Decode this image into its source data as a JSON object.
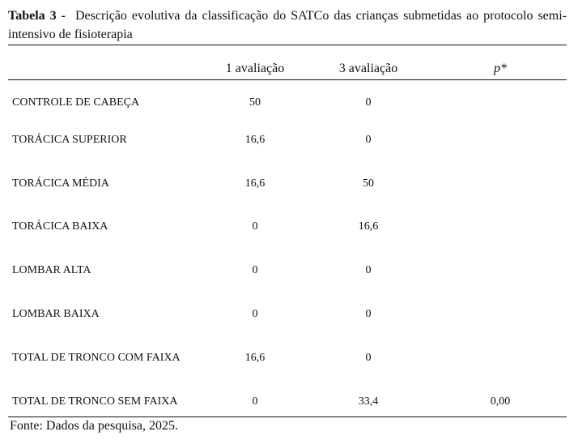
{
  "caption": {
    "label": "Tabela 3 -",
    "text": "Descrição evolutiva da classificação do SATCo das crianças submetidas ao protocolo semi-intensivo de fisioterapia"
  },
  "table": {
    "headers": [
      "",
      "1 avaliação",
      "3 avaliação",
      "p*"
    ],
    "rows": [
      {
        "label": "CONTROLE DE CABEÇA",
        "a1": "50",
        "a3": "0",
        "p": ""
      },
      {
        "label": "TORÁCICA SUPERIOR",
        "a1": "16,6",
        "a3": "0",
        "p": ""
      },
      {
        "label": "TORÁCICA MÉDIA",
        "a1": "16,6",
        "a3": "50",
        "p": ""
      },
      {
        "label": "TORÁCICA BAIXA",
        "a1": "0",
        "a3": "16,6",
        "p": ""
      },
      {
        "label": "LOMBAR ALTA",
        "a1": "0",
        "a3": "0",
        "p": ""
      },
      {
        "label": "LOMBAR BAIXA",
        "a1": "0",
        "a3": "0",
        "p": ""
      },
      {
        "label": "TOTAL DE TRONCO COM FAIXA",
        "a1": "16,6",
        "a3": "0",
        "p": ""
      },
      {
        "label": "TOTAL DE TRONCO SEM FAIXA",
        "a1": "0",
        "a3": "33,4",
        "p": "0,00"
      }
    ]
  },
  "source": "Fonte: Dados da pesquisa, 2025."
}
